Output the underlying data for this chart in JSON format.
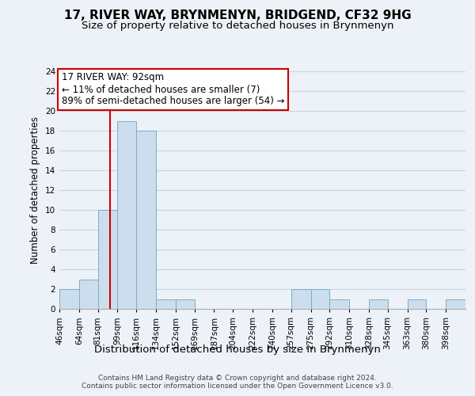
{
  "title": "17, RIVER WAY, BRYNMENYN, BRIDGEND, CF32 9HG",
  "subtitle": "Size of property relative to detached houses in Brynmenyn",
  "xlabel": "Distribution of detached houses by size in Brynmenyn",
  "ylabel": "Number of detached properties",
  "bin_labels": [
    "46sqm",
    "64sqm",
    "81sqm",
    "99sqm",
    "116sqm",
    "134sqm",
    "152sqm",
    "169sqm",
    "187sqm",
    "204sqm",
    "222sqm",
    "240sqm",
    "257sqm",
    "275sqm",
    "292sqm",
    "310sqm",
    "328sqm",
    "345sqm",
    "363sqm",
    "380sqm",
    "398sqm"
  ],
  "bin_edges": [
    46,
    64,
    81,
    99,
    116,
    134,
    152,
    169,
    187,
    204,
    222,
    240,
    257,
    275,
    292,
    310,
    328,
    345,
    363,
    380,
    398,
    416
  ],
  "counts": [
    2,
    3,
    10,
    19,
    18,
    1,
    1,
    0,
    0,
    0,
    0,
    0,
    2,
    2,
    1,
    0,
    1,
    0,
    1,
    0,
    1
  ],
  "bar_color": "#ccdded",
  "bar_edge_color": "#7aaec8",
  "vline_x": 92,
  "vline_color": "#cc0000",
  "annotation_line1": "17 RIVER WAY: 92sqm",
  "annotation_line2": "← 11% of detached houses are smaller (7)",
  "annotation_line3": "89% of semi-detached houses are larger (54) →",
  "ylim": [
    0,
    24
  ],
  "yticks": [
    0,
    2,
    4,
    6,
    8,
    10,
    12,
    14,
    16,
    18,
    20,
    22,
    24
  ],
  "grid_color": "#c8d4e4",
  "background_color": "#edf2f8",
  "footer_text": "Contains HM Land Registry data © Crown copyright and database right 2024.\nContains public sector information licensed under the Open Government Licence v3.0.",
  "title_fontsize": 11,
  "subtitle_fontsize": 9.5,
  "xlabel_fontsize": 9.5,
  "ylabel_fontsize": 8.5,
  "tick_fontsize": 7.5,
  "annotation_fontsize": 8.5,
  "footer_fontsize": 6.5
}
